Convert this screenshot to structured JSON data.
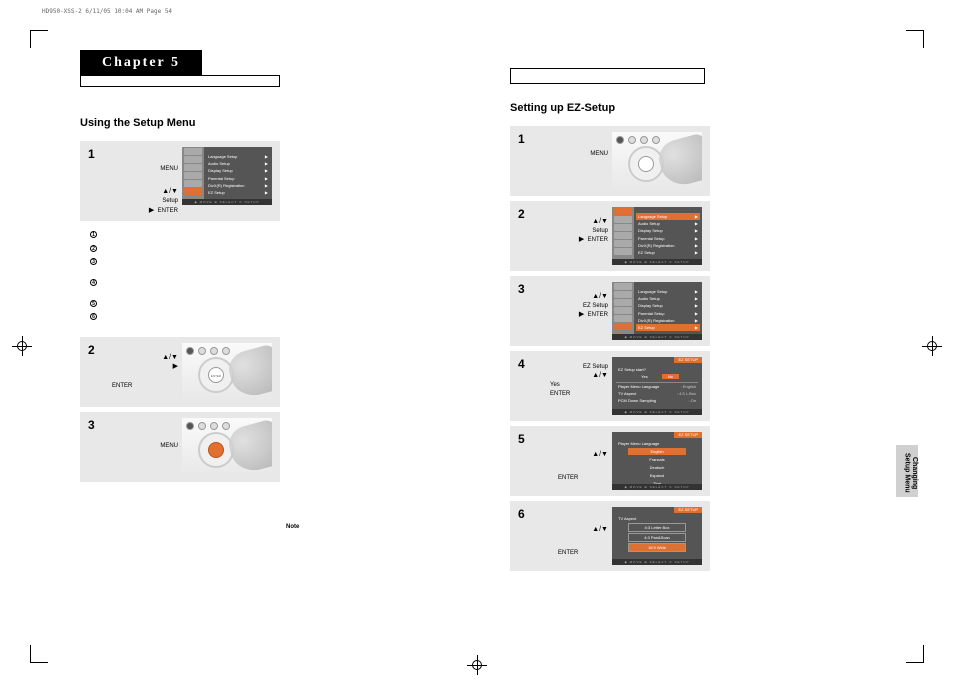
{
  "header": "HD950-XSS-2  6/11/05  10:04 AM  Page 54",
  "chapter_label": "Chapter 5",
  "left_section_title": "Using the Setup Menu",
  "right_section_title": "Setting up EZ-Setup",
  "side_tab_line1": "Changing",
  "side_tab_line2": "Setup Menu",
  "labels": {
    "menu": "MENU",
    "setup": "Setup",
    "ezsetup": "EZ Setup",
    "enter": "ENTER",
    "yes": "Yes",
    "updown": "▲/▼",
    "play": "▶",
    "note": "Note"
  },
  "setup_menu_items": [
    "Language Setup",
    "Audio Setup",
    "Display Setup",
    "Parental Setup",
    "DivX(R) Registration",
    "EZ Setup"
  ],
  "footer_icons": "◆ MOVE   ⊕ SELECT   ⊙ SETUP",
  "ez_setup_title": "EZ SETUP",
  "ez_start_label": "EZ Setup start?",
  "ez_start_opts": [
    "Yes",
    "No"
  ],
  "ez_summary": [
    {
      "k": "Player Menu Language",
      "v": "English"
    },
    {
      "k": "TV Aspect",
      "v": "4:3 L.Box"
    },
    {
      "k": "PCM Down Sampling",
      "v": "On"
    }
  ],
  "lang_title": "Player Menu Language",
  "lang_opts": [
    "English",
    "Francais",
    "Deutsch",
    "Espanol",
    "Thai"
  ],
  "aspect_title": "TV Aspect",
  "aspect_opts": [
    "4:3 Letter Box",
    "4:3 Pan&Scan",
    "16:9 Wide"
  ],
  "circled_nums": [
    "1",
    "2",
    "3",
    "4",
    "5",
    "6"
  ],
  "colors": {
    "highlight": "#e07030",
    "step_bg": "#e8e8e8",
    "screen_bg": "#555555"
  }
}
